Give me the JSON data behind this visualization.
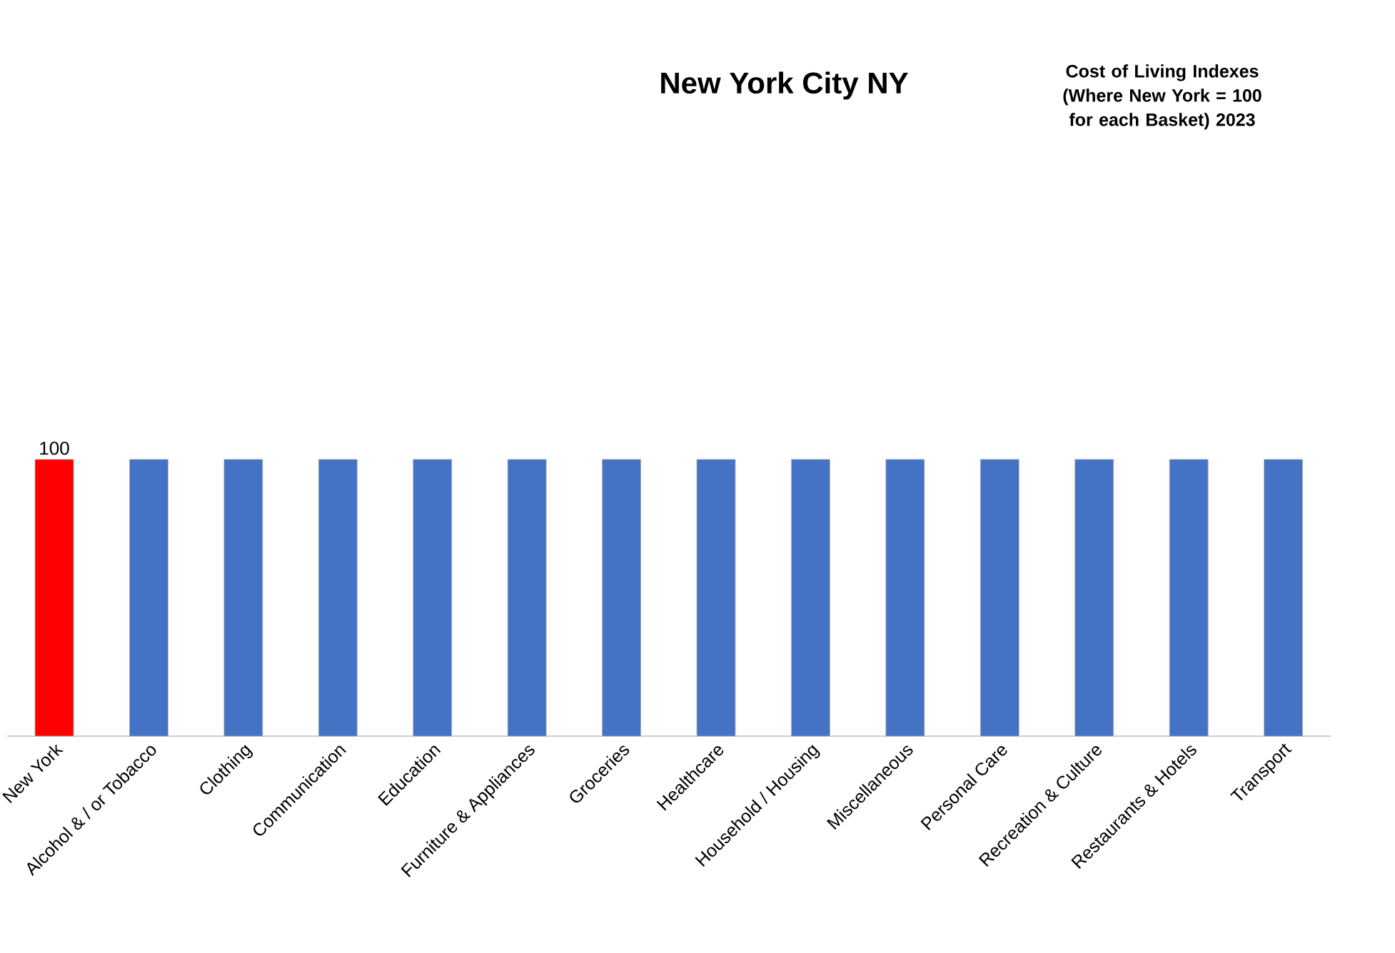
{
  "chart_data": {
    "type": "bar",
    "title": "New York City NY",
    "annotations": [
      "Cost of Living Indexes (Where New York = 100 for each Basket) 2023"
    ],
    "categories": [
      "New York",
      "Alcohol & / or Tobacco",
      "Clothing",
      "Communication",
      "Education",
      "Furniture & Appliances",
      "Groceries",
      "Healthcare",
      "Household / Housing",
      "Miscellaneous",
      "Personal Care",
      "Recreation & Culture",
      "Restaurants & Hotels",
      "Transport"
    ],
    "values": [
      100,
      100,
      100,
      100,
      100,
      100,
      100,
      100,
      100,
      100,
      100,
      100,
      100,
      100
    ],
    "colors": [
      "#ff0000",
      "#4472c4",
      "#4472c4",
      "#4472c4",
      "#4472c4",
      "#4472c4",
      "#4472c4",
      "#4472c4",
      "#4472c4",
      "#4472c4",
      "#4472c4",
      "#4472c4",
      "#4472c4",
      "#4472c4"
    ],
    "value_labels": [
      "100",
      null,
      null,
      null,
      null,
      null,
      null,
      null,
      null,
      null,
      null,
      null,
      null,
      null
    ]
  }
}
